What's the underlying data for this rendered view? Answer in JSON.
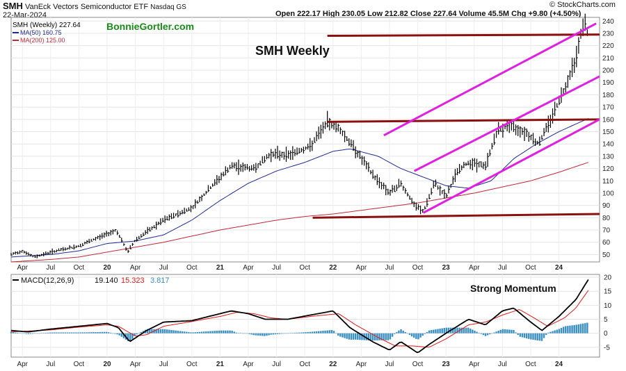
{
  "header": {
    "symbol": "SMH",
    "name": "VanEck Vectors Semiconductor ETF",
    "exchange": "Nasdaq GS",
    "date": "22-Mar-2024",
    "ohlc_text": "Open 222.17  High 230.05  Low 212.82  Close 227.64  Volume 45.5M  Chg +9.80 (+4.50%)",
    "stockcharts": "© StockCharts.com"
  },
  "overlay_text": {
    "website": "BonnieGortler.com",
    "title": "SMH Weekly",
    "momentum": "Strong Momentum"
  },
  "colors": {
    "price": "#000000",
    "ma50": "#1f2a8f",
    "ma200": "#c0283a",
    "channel": "#e020e0",
    "horizontal": "#8b1010",
    "macd": "#000000",
    "signal": "#e01818",
    "histogram": "#3b8fc0",
    "website": "#1a8a1a"
  },
  "chart_data": [
    {
      "type": "line",
      "panel": "price",
      "legend": [
        {
          "label": "SMH (Weekly) 227.64",
          "color": "#000000"
        },
        {
          "label": "MA(50) 160.75",
          "color": "#1f2a8f"
        },
        {
          "label": "MA(200) 125.00",
          "color": "#c0283a"
        }
      ],
      "y_ticks": [
        50,
        60,
        70,
        80,
        90,
        100,
        110,
        120,
        130,
        140,
        150,
        160,
        170,
        180,
        190,
        200,
        210,
        220,
        230,
        240
      ],
      "x_ticks": [
        "Apr",
        "Jul",
        "Oct",
        "20",
        "Apr",
        "Jul",
        "Oct",
        "21",
        "Apr",
        "Jul",
        "Oct",
        "22",
        "Apr",
        "Jul",
        "Oct",
        "23",
        "Apr",
        "Jul",
        "Oct",
        "24"
      ],
      "x_tick_dates": [
        2019.25,
        2019.5,
        2019.75,
        2020.0,
        2020.25,
        2020.5,
        2020.75,
        2021.0,
        2021.25,
        2021.5,
        2021.75,
        2022.0,
        2022.25,
        2022.5,
        2022.75,
        2023.0,
        2023.25,
        2023.5,
        2023.75,
        2024.0
      ],
      "x_range": [
        2019.15,
        2024.36
      ],
      "price_anchors": [
        [
          2019.15,
          50
        ],
        [
          2019.25,
          53
        ],
        [
          2019.35,
          48
        ],
        [
          2019.5,
          52
        ],
        [
          2019.75,
          57
        ],
        [
          2019.9,
          63
        ],
        [
          2020.08,
          70
        ],
        [
          2020.18,
          52
        ],
        [
          2020.25,
          62
        ],
        [
          2020.5,
          78
        ],
        [
          2020.75,
          88
        ],
        [
          2020.95,
          108
        ],
        [
          2021.1,
          122
        ],
        [
          2021.3,
          120
        ],
        [
          2021.45,
          132
        ],
        [
          2021.6,
          131
        ],
        [
          2021.8,
          138
        ],
        [
          2021.95,
          158
        ],
        [
          2022.05,
          153
        ],
        [
          2022.2,
          135
        ],
        [
          2022.35,
          115
        ],
        [
          2022.5,
          100
        ],
        [
          2022.6,
          108
        ],
        [
          2022.72,
          90
        ],
        [
          2022.8,
          85
        ],
        [
          2022.9,
          108
        ],
        [
          2023.0,
          97
        ],
        [
          2023.1,
          118
        ],
        [
          2023.2,
          125
        ],
        [
          2023.35,
          122
        ],
        [
          2023.45,
          150
        ],
        [
          2023.55,
          155
        ],
        [
          2023.7,
          150
        ],
        [
          2023.82,
          140
        ],
        [
          2023.95,
          165
        ],
        [
          2024.05,
          185
        ],
        [
          2024.15,
          210
        ],
        [
          2024.22,
          240
        ],
        [
          2024.26,
          227.64
        ]
      ],
      "ma50": [
        [
          2019.15,
          48
        ],
        [
          2019.5,
          50
        ],
        [
          2019.75,
          53
        ],
        [
          2020.0,
          59
        ],
        [
          2020.25,
          61
        ],
        [
          2020.5,
          66
        ],
        [
          2020.75,
          78
        ],
        [
          2021.0,
          94
        ],
        [
          2021.25,
          108
        ],
        [
          2021.5,
          118
        ],
        [
          2021.75,
          125
        ],
        [
          2022.0,
          134
        ],
        [
          2022.15,
          136
        ],
        [
          2022.4,
          130
        ],
        [
          2022.6,
          120
        ],
        [
          2022.8,
          113
        ],
        [
          2023.0,
          106
        ],
        [
          2023.2,
          104
        ],
        [
          2023.4,
          110
        ],
        [
          2023.6,
          128
        ],
        [
          2023.8,
          140
        ],
        [
          2024.0,
          150
        ],
        [
          2024.26,
          160.75
        ]
      ],
      "ma200": [
        [
          2019.15,
          44
        ],
        [
          2019.5,
          46
        ],
        [
          2019.75,
          48
        ],
        [
          2020.0,
          52
        ],
        [
          2020.25,
          56
        ],
        [
          2020.5,
          60
        ],
        [
          2020.75,
          65
        ],
        [
          2021.0,
          70
        ],
        [
          2021.25,
          74
        ],
        [
          2021.5,
          78
        ],
        [
          2021.75,
          81
        ],
        [
          2022.0,
          83
        ],
        [
          2022.25,
          86
        ],
        [
          2022.5,
          89
        ],
        [
          2022.75,
          92
        ],
        [
          2023.0,
          96
        ],
        [
          2023.25,
          100
        ],
        [
          2023.5,
          105
        ],
        [
          2023.75,
          110
        ],
        [
          2024.0,
          117
        ],
        [
          2024.26,
          125
        ]
      ],
      "horizontal_lines": [
        {
          "x": [
            2021.95,
            2024.36
          ],
          "y": [
            228,
            229
          ]
        },
        {
          "x": [
            2021.95,
            2024.36
          ],
          "y": [
            158,
            160
          ]
        },
        {
          "x": [
            2021.82,
            2024.36
          ],
          "y": [
            80,
            83
          ]
        }
      ],
      "channel_lines": [
        {
          "x": [
            2022.45,
            2024.33
          ],
          "y": [
            147,
            238
          ]
        },
        {
          "x": [
            2022.72,
            2024.36
          ],
          "y": [
            118,
            195
          ]
        },
        {
          "x": [
            2022.8,
            2024.36
          ],
          "y": [
            84,
            160
          ]
        }
      ]
    },
    {
      "type": "line",
      "panel": "macd",
      "legend": {
        "label": "MACD(12,26,9)",
        "macd": "19.140",
        "signal": "15.323",
        "histogram": "3.817"
      },
      "y_ticks": [
        -5,
        0,
        5,
        10,
        15,
        20
      ],
      "x_ticks": [
        "Apr",
        "Jul",
        "Oct",
        "20",
        "Apr",
        "Jul",
        "Oct",
        "21",
        "Apr",
        "Jul",
        "Oct",
        "22",
        "Apr",
        "Jul",
        "Oct",
        "23",
        "Apr",
        "Jul",
        "Oct",
        "24"
      ],
      "macd": [
        [
          2019.15,
          1
        ],
        [
          2019.3,
          0.5
        ],
        [
          2019.5,
          1.5
        ],
        [
          2019.75,
          2.5
        ],
        [
          2020.0,
          3.5
        ],
        [
          2020.1,
          2
        ],
        [
          2020.2,
          -3
        ],
        [
          2020.35,
          1
        ],
        [
          2020.5,
          4
        ],
        [
          2020.75,
          4.5
        ],
        [
          2021.0,
          7
        ],
        [
          2021.1,
          8
        ],
        [
          2021.25,
          7
        ],
        [
          2021.4,
          5
        ],
        [
          2021.6,
          5
        ],
        [
          2021.8,
          6.5
        ],
        [
          2022.0,
          8
        ],
        [
          2022.15,
          2
        ],
        [
          2022.35,
          -3
        ],
        [
          2022.5,
          -6
        ],
        [
          2022.6,
          -3
        ],
        [
          2022.75,
          -7
        ],
        [
          2022.85,
          -4
        ],
        [
          2023.0,
          0
        ],
        [
          2023.2,
          5
        ],
        [
          2023.35,
          3
        ],
        [
          2023.5,
          8
        ],
        [
          2023.6,
          9
        ],
        [
          2023.75,
          4
        ],
        [
          2023.85,
          1
        ],
        [
          2024.0,
          6
        ],
        [
          2024.15,
          12
        ],
        [
          2024.26,
          19.14
        ]
      ],
      "signal": [
        [
          2019.15,
          0.5
        ],
        [
          2019.3,
          0.8
        ],
        [
          2019.5,
          1.2
        ],
        [
          2019.75,
          2.2
        ],
        [
          2020.0,
          3.0
        ],
        [
          2020.1,
          2.5
        ],
        [
          2020.25,
          -1
        ],
        [
          2020.35,
          -0.5
        ],
        [
          2020.5,
          2.5
        ],
        [
          2020.75,
          4.2
        ],
        [
          2021.0,
          6
        ],
        [
          2021.15,
          7.5
        ],
        [
          2021.3,
          7
        ],
        [
          2021.45,
          5.5
        ],
        [
          2021.6,
          5
        ],
        [
          2021.8,
          6
        ],
        [
          2022.05,
          7
        ],
        [
          2022.2,
          3
        ],
        [
          2022.4,
          -1.5
        ],
        [
          2022.55,
          -4.5
        ],
        [
          2022.7,
          -4.5
        ],
        [
          2022.85,
          -5
        ],
        [
          2023.0,
          -2
        ],
        [
          2023.2,
          3
        ],
        [
          2023.35,
          4
        ],
        [
          2023.5,
          6.5
        ],
        [
          2023.65,
          8.5
        ],
        [
          2023.8,
          5
        ],
        [
          2023.9,
          2.5
        ],
        [
          2024.05,
          5.5
        ],
        [
          2024.15,
          9
        ],
        [
          2024.26,
          15.323
        ]
      ]
    }
  ]
}
